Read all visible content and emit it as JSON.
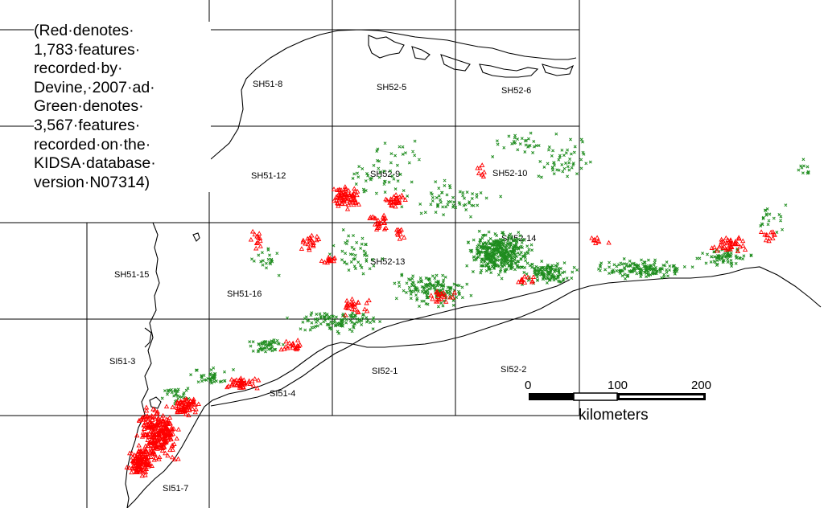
{
  "legend": {
    "lines": [
      "(Red·denotes·",
      "1,783·features·",
      "recorded·by·",
      "Devine,·2007·ad·",
      "Green·denotes·",
      "3,567·features·",
      "recorded·on·the·",
      "KIDSA·database·",
      "version·N07314)"
    ]
  },
  "sheets": [
    "SH51-8",
    "SH52-5",
    "SH52-6",
    "SH51-12",
    "SH52-9",
    "SH52-10",
    "SH52-14",
    "SH51-15",
    "SH51-16",
    "SH52-13",
    "SI51-3",
    "SI51-4",
    "SI52-1",
    "SI52-2",
    "SI51-7"
  ],
  "scale": {
    "ticks": [
      "0",
      "100",
      "200"
    ],
    "unit": "kilometers"
  },
  "colors": {
    "red_features": "#ff0000",
    "green_features": "#1e8c1e",
    "grid": "#000000",
    "coastline": "#000000"
  },
  "layers": {
    "red_symbol": "triangle",
    "green_symbol": "cross"
  }
}
